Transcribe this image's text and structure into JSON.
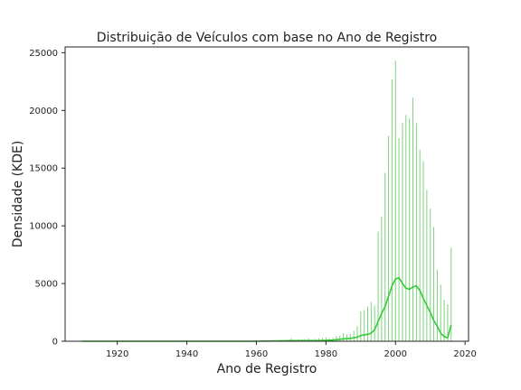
{
  "chart_data": {
    "type": "bar",
    "title": "Distribuição de Veículos com base no Ano de Registro",
    "xlabel": "Ano de Registro",
    "ylabel": "Densidade (KDE)",
    "xlim": [
      1905,
      2021
    ],
    "ylim": [
      0,
      25500
    ],
    "xticks": [
      1920,
      1940,
      1960,
      1980,
      2000,
      2020
    ],
    "yticks": [
      0,
      5000,
      10000,
      15000,
      20000,
      25000
    ],
    "grid": false,
    "legend": "none",
    "colors": {
      "bars": "#7fd27f",
      "kde": "#33cc33"
    },
    "histogram": {
      "x": [
        1910,
        1915,
        1920,
        1925,
        1930,
        1935,
        1940,
        1945,
        1950,
        1955,
        1960,
        1965,
        1968,
        1970,
        1971,
        1972,
        1973,
        1974,
        1975,
        1976,
        1977,
        1978,
        1979,
        1980,
        1981,
        1982,
        1983,
        1984,
        1985,
        1986,
        1987,
        1988,
        1989,
        1990,
        1991,
        1992,
        1993,
        1994,
        1995,
        1996,
        1997,
        1998,
        1999,
        2000,
        2001,
        2002,
        2003,
        2004,
        2005,
        2006,
        2007,
        2008,
        2009,
        2010,
        2011,
        2012,
        2013,
        2014,
        2015,
        2016
      ],
      "values": [
        50,
        20,
        20,
        20,
        20,
        20,
        20,
        20,
        40,
        40,
        100,
        80,
        100,
        250,
        120,
        150,
        180,
        200,
        250,
        150,
        200,
        250,
        300,
        350,
        250,
        300,
        450,
        500,
        700,
        600,
        650,
        900,
        1300,
        2600,
        2700,
        3000,
        3400,
        3100,
        9500,
        10800,
        14600,
        17800,
        22700,
        24300,
        17600,
        18900,
        19600,
        19300,
        21100,
        18900,
        16600,
        15600,
        13100,
        11500,
        9900,
        6200,
        4900,
        3600,
        3200,
        8100
      ]
    },
    "kde": {
      "x": [
        1910,
        1930,
        1950,
        1960,
        1970,
        1978,
        1982,
        1985,
        1987,
        1989,
        1990,
        1992,
        1993,
        1994,
        1995,
        1996,
        1997,
        1998,
        1999,
        2000,
        2001,
        2002,
        2003,
        2004,
        2005,
        2006,
        2007,
        2008,
        2009,
        2010,
        2011,
        2012,
        2013,
        2014,
        2015,
        2016
      ],
      "values": [
        0,
        0,
        0,
        0,
        50,
        50,
        100,
        200,
        250,
        350,
        500,
        600,
        700,
        1000,
        1700,
        2400,
        3000,
        3900,
        4800,
        5400,
        5500,
        5000,
        4600,
        4500,
        4700,
        4800,
        4400,
        3700,
        3100,
        2500,
        1800,
        1300,
        700,
        400,
        300,
        1400
      ]
    }
  }
}
